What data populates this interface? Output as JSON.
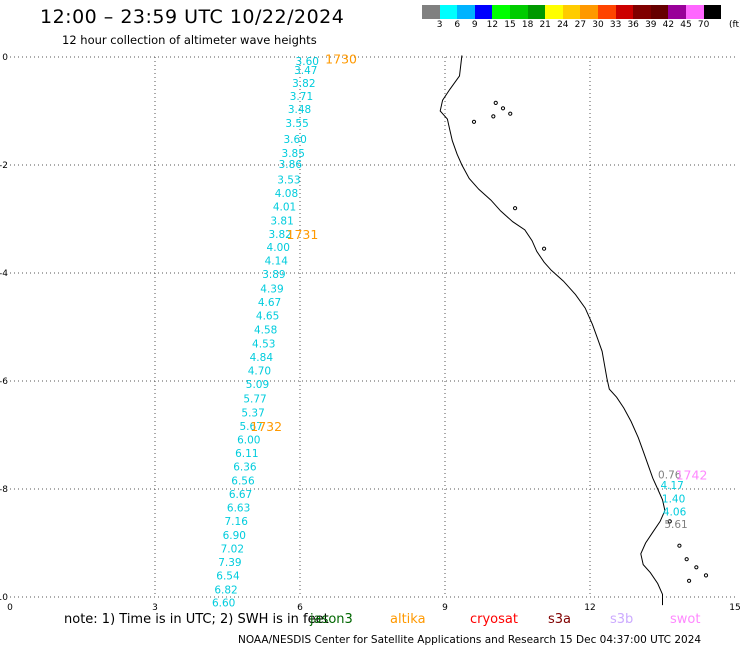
{
  "header": {
    "title": "12:00 – 23:59 UTC 10/22/2024",
    "subtitle": "12 hour collection of altimeter wave heights"
  },
  "colorbar": {
    "labels": [
      "3",
      "6",
      "9",
      "12",
      "15",
      "18",
      "21",
      "24",
      "27",
      "30",
      "33",
      "36",
      "39",
      "42",
      "45",
      "70"
    ],
    "unit": "(ft)",
    "colors": [
      "#808080",
      "#00ffff",
      "#00b3ff",
      "#0000ff",
      "#00ff00",
      "#00cc00",
      "#009900",
      "#ffff00",
      "#ffcc00",
      "#ff9900",
      "#ff4400",
      "#cc0000",
      "#800000",
      "#660000",
      "#990099",
      "#ff66ff",
      "#000000"
    ]
  },
  "note": "note:  1) Time is in UTC; 2) SWH is in feet",
  "satellites": [
    {
      "name": "jason3",
      "color": "#006600"
    },
    {
      "name": "altika",
      "color": "#ff9900"
    },
    {
      "name": "cryosat",
      "color": "#ff0000"
    },
    {
      "name": "s3a",
      "color": "#800000"
    },
    {
      "name": "s3b",
      "color": "#ccaaff"
    },
    {
      "name": "swot",
      "color": "#ff88ff"
    }
  ],
  "footer": "NOAA/NESDIS Center for Satellite Applications and Research    15 Dec 04:37:00 UTC 2024",
  "chart_data": {
    "type": "scatter",
    "xlim": [
      0,
      15
    ],
    "ylim": [
      -10,
      0
    ],
    "x_ticks": [
      "0",
      "3",
      "6",
      "9",
      "12",
      "15"
    ],
    "y_ticks": [
      "0",
      "-2",
      "-4",
      "-6",
      "-8",
      "-10"
    ],
    "grid": true,
    "track_color": "#00ccdd",
    "series": [
      {
        "values": [
          {
            "x": 6.15,
            "y": -0.07,
            "label": "3.60"
          },
          {
            "x": 6.12,
            "y": -0.24,
            "label": "3.47"
          },
          {
            "x": 6.08,
            "y": -0.48,
            "label": "3.82"
          },
          {
            "x": 6.03,
            "y": -0.72,
            "label": "3.71"
          },
          {
            "x": 5.99,
            "y": -0.96,
            "label": "3.48"
          },
          {
            "x": 5.94,
            "y": -1.22,
            "label": "3.55"
          },
          {
            "x": 5.9,
            "y": -1.52,
            "label": "3.60"
          },
          {
            "x": 5.86,
            "y": -1.78,
            "label": "3.85"
          },
          {
            "x": 5.8,
            "y": -1.98,
            "label": "3.86"
          },
          {
            "x": 5.77,
            "y": -2.27,
            "label": "3.53"
          },
          {
            "x": 5.72,
            "y": -2.52,
            "label": "4.08"
          },
          {
            "x": 5.68,
            "y": -2.77,
            "label": "4.01"
          },
          {
            "x": 5.63,
            "y": -3.03,
            "label": "3.81"
          },
          {
            "x": 5.59,
            "y": -3.28,
            "label": "3.82"
          },
          {
            "x": 5.55,
            "y": -3.52,
            "label": "4.00"
          },
          {
            "x": 5.51,
            "y": -3.77,
            "label": "4.14"
          },
          {
            "x": 5.46,
            "y": -4.02,
            "label": "3.89"
          },
          {
            "x": 5.42,
            "y": -4.29,
            "label": "4.39"
          },
          {
            "x": 5.37,
            "y": -4.54,
            "label": "4.67"
          },
          {
            "x": 5.33,
            "y": -4.79,
            "label": "4.65"
          },
          {
            "x": 5.29,
            "y": -5.05,
            "label": "4.58"
          },
          {
            "x": 5.25,
            "y": -5.31,
            "label": "4.53"
          },
          {
            "x": 5.2,
            "y": -5.56,
            "label": "4.84"
          },
          {
            "x": 5.16,
            "y": -5.81,
            "label": "4.70"
          },
          {
            "x": 5.12,
            "y": -6.06,
            "label": "5.09"
          },
          {
            "x": 5.07,
            "y": -6.32,
            "label": "5.77"
          },
          {
            "x": 5.03,
            "y": -6.58,
            "label": "5.37"
          },
          {
            "x": 4.99,
            "y": -6.83,
            "label": "5.67"
          },
          {
            "x": 4.94,
            "y": -7.08,
            "label": "6.00"
          },
          {
            "x": 4.9,
            "y": -7.33,
            "label": "6.11"
          },
          {
            "x": 4.86,
            "y": -7.58,
            "label": "6.36"
          },
          {
            "x": 4.82,
            "y": -7.84,
            "label": "6.56"
          },
          {
            "x": 4.77,
            "y": -8.09,
            "label": "6.67"
          },
          {
            "x": 4.73,
            "y": -8.34,
            "label": "6.63"
          },
          {
            "x": 4.68,
            "y": -8.59,
            "label": "7.16"
          },
          {
            "x": 4.64,
            "y": -8.85,
            "label": "6.90"
          },
          {
            "x": 4.6,
            "y": -9.1,
            "label": "7.02"
          },
          {
            "x": 4.55,
            "y": -9.35,
            "label": "7.39"
          },
          {
            "x": 4.51,
            "y": -9.6,
            "label": "6.54"
          },
          {
            "x": 4.47,
            "y": -9.86,
            "label": "6.82"
          },
          {
            "x": 4.42,
            "y": -10.1,
            "label": "6.60"
          }
        ]
      },
      {
        "values": [
          {
            "x": 13.65,
            "y": -7.73,
            "label": "0.76",
            "color": "#808080"
          },
          {
            "x": 13.7,
            "y": -7.93,
            "label": "4.17"
          },
          {
            "x": 13.73,
            "y": -8.18,
            "label": "1.40"
          },
          {
            "x": 13.75,
            "y": -8.42,
            "label": "4.06"
          },
          {
            "x": 13.78,
            "y": -8.65,
            "label": "5.61",
            "color": "#808080"
          }
        ]
      }
    ],
    "annotations": [
      {
        "text": "1730",
        "x": 6.85,
        "y": -0.03,
        "color": "#ff9900"
      },
      {
        "text": "1731",
        "x": 6.05,
        "y": -3.28,
        "color": "#ff9900"
      },
      {
        "text": "1732",
        "x": 5.3,
        "y": -6.83,
        "color": "#ff9900"
      },
      {
        "text": "1742",
        "x": 14.1,
        "y": -7.73,
        "color": "#ff88ff"
      }
    ],
    "coastline": [
      [
        9.35,
        0.03
      ],
      [
        9.3,
        -0.35
      ],
      [
        9.1,
        -0.6
      ],
      [
        8.95,
        -0.8
      ],
      [
        8.9,
        -1.0
      ],
      [
        9.05,
        -1.15
      ],
      [
        9.1,
        -1.35
      ],
      [
        9.15,
        -1.55
      ],
      [
        9.25,
        -1.8
      ],
      [
        9.35,
        -2.0
      ],
      [
        9.5,
        -2.25
      ],
      [
        9.7,
        -2.45
      ],
      [
        9.95,
        -2.65
      ],
      [
        10.15,
        -2.85
      ],
      [
        10.4,
        -3.05
      ],
      [
        10.65,
        -3.2
      ],
      [
        10.8,
        -3.4
      ],
      [
        10.9,
        -3.6
      ],
      [
        11.05,
        -3.8
      ],
      [
        11.2,
        -3.95
      ],
      [
        11.45,
        -4.15
      ],
      [
        11.7,
        -4.4
      ],
      [
        11.9,
        -4.65
      ],
      [
        12.05,
        -4.95
      ],
      [
        12.15,
        -5.2
      ],
      [
        12.25,
        -5.45
      ],
      [
        12.3,
        -5.7
      ],
      [
        12.35,
        -5.95
      ],
      [
        12.4,
        -6.15
      ],
      [
        12.55,
        -6.3
      ],
      [
        12.7,
        -6.5
      ],
      [
        12.85,
        -6.75
      ],
      [
        13.0,
        -7.05
      ],
      [
        13.1,
        -7.3
      ],
      [
        13.2,
        -7.55
      ],
      [
        13.3,
        -7.8
      ],
      [
        13.4,
        -8.0
      ],
      [
        13.5,
        -8.2
      ],
      [
        13.55,
        -8.4
      ],
      [
        13.45,
        -8.6
      ],
      [
        13.3,
        -8.8
      ],
      [
        13.15,
        -9.0
      ],
      [
        13.05,
        -9.2
      ],
      [
        13.1,
        -9.4
      ],
      [
        13.25,
        -9.55
      ],
      [
        13.4,
        -9.75
      ],
      [
        13.5,
        -9.95
      ],
      [
        13.5,
        -10.15
      ]
    ],
    "islands": [
      [
        10.05,
        -0.85
      ],
      [
        10.2,
        -0.95
      ],
      [
        10.35,
        -1.05
      ],
      [
        10.0,
        -1.1
      ],
      [
        9.6,
        -1.2
      ],
      [
        10.45,
        -2.8
      ],
      [
        11.05,
        -3.55
      ],
      [
        13.65,
        -8.6
      ],
      [
        13.85,
        -9.05
      ],
      [
        14.0,
        -9.3
      ],
      [
        14.2,
        -9.45
      ],
      [
        14.4,
        -9.6
      ],
      [
        14.05,
        -9.7
      ]
    ]
  }
}
